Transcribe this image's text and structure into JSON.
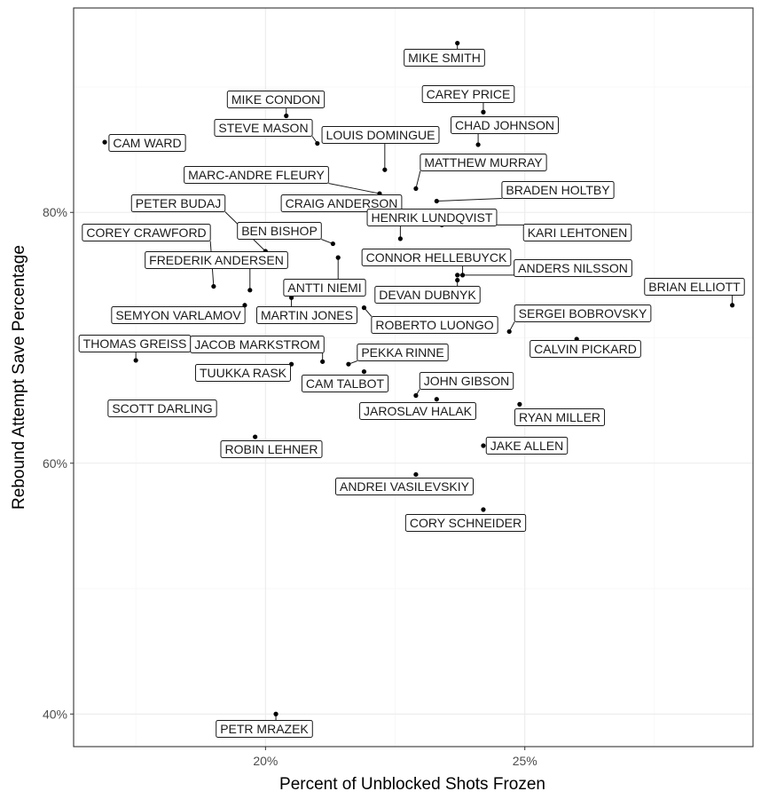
{
  "chart_data": {
    "type": "scatter",
    "xlabel": "Percent of Unblocked Shots Frozen",
    "ylabel": "Rebound Attempt Save Percentage",
    "xlim": [
      16.3,
      29.4
    ],
    "ylim": [
      37.4,
      96.3
    ],
    "x_ticks": [
      20,
      25
    ],
    "x_tick_labels": [
      "20%",
      "25%"
    ],
    "y_ticks": [
      40,
      60,
      80
    ],
    "y_tick_labels": [
      "40%",
      "60%",
      "80%"
    ],
    "grid": true,
    "points": [
      {
        "name": "MIKE SMITH",
        "x": 23.7,
        "y": 93.5
      },
      {
        "name": "MIKE CONDON",
        "x": 20.4,
        "y": 87.7
      },
      {
        "name": "CAREY PRICE",
        "x": 24.2,
        "y": 88.0
      },
      {
        "name": "CHAD JOHNSON",
        "x": 24.1,
        "y": 85.4
      },
      {
        "name": "STEVE MASON",
        "x": 21.0,
        "y": 85.5
      },
      {
        "name": "LOUIS DOMINGUE",
        "x": 22.3,
        "y": 83.4
      },
      {
        "name": "CAM WARD",
        "x": 16.9,
        "y": 85.6
      },
      {
        "name": "MATTHEW MURRAY",
        "x": 22.9,
        "y": 81.9
      },
      {
        "name": "MARC-ANDRE FLEURY",
        "x": 22.2,
        "y": 81.5
      },
      {
        "name": "BRADEN HOLTBY",
        "x": 23.3,
        "y": 80.9
      },
      {
        "name": "CRAIG ANDERSON",
        "x": 22.1,
        "y": 80.6
      },
      {
        "name": "PETER BUDAJ",
        "x": 20.0,
        "y": 76.9
      },
      {
        "name": "HENRIK LUNDQVIST",
        "x": 22.6,
        "y": 77.9
      },
      {
        "name": "KARI LEHTONEN",
        "x": 23.4,
        "y": 79.0
      },
      {
        "name": "BEN BISHOP",
        "x": 21.3,
        "y": 77.5
      },
      {
        "name": "COREY CRAWFORD",
        "x": 19.0,
        "y": 74.1
      },
      {
        "name": "FREDERIK ANDERSEN",
        "x": 19.7,
        "y": 73.8
      },
      {
        "name": "CONNOR HELLEBUYCK",
        "x": 23.8,
        "y": 75.0
      },
      {
        "name": "ANDERS NILSSON",
        "x": 23.7,
        "y": 75.0
      },
      {
        "name": "ANTTI NIEMI",
        "x": 21.4,
        "y": 76.4
      },
      {
        "name": "DEVAN DUBNYK",
        "x": 23.7,
        "y": 74.6
      },
      {
        "name": "BRIAN ELLIOTT",
        "x": 29.0,
        "y": 72.6
      },
      {
        "name": "SEMYON VARLAMOV",
        "x": 19.6,
        "y": 72.6
      },
      {
        "name": "MARTIN JONES",
        "x": 20.5,
        "y": 73.2
      },
      {
        "name": "ROBERTO LUONGO",
        "x": 21.9,
        "y": 72.4
      },
      {
        "name": "SERGEI BOBROVSKY",
        "x": 24.7,
        "y": 70.5
      },
      {
        "name": "CALVIN PICKARD",
        "x": 26.0,
        "y": 69.9
      },
      {
        "name": "THOMAS GREISS",
        "x": 17.5,
        "y": 68.2
      },
      {
        "name": "JACOB MARKSTROM",
        "x": 21.1,
        "y": 68.1
      },
      {
        "name": "PEKKA RINNE",
        "x": 21.6,
        "y": 67.9
      },
      {
        "name": "TUUKKA RASK",
        "x": 20.5,
        "y": 67.9
      },
      {
        "name": "CAM TALBOT",
        "x": 21.9,
        "y": 67.3
      },
      {
        "name": "JOHN GIBSON",
        "x": 22.9,
        "y": 65.4
      },
      {
        "name": "JAROSLAV HALAK",
        "x": 23.3,
        "y": 65.1
      },
      {
        "name": "RYAN MILLER",
        "x": 24.9,
        "y": 64.7
      },
      {
        "name": "SCOTT DARLING",
        "x": 17.1,
        "y": 64.1
      },
      {
        "name": "ROBIN LEHNER",
        "x": 19.8,
        "y": 62.1
      },
      {
        "name": "JAKE ALLEN",
        "x": 24.2,
        "y": 61.4
      },
      {
        "name": "ANDREI VASILEVSKIY",
        "x": 22.9,
        "y": 59.1
      },
      {
        "name": "CORY SCHNEIDER",
        "x": 24.2,
        "y": 56.3
      },
      {
        "name": "PETR MRAZEK",
        "x": 20.2,
        "y": 40.0
      }
    ]
  }
}
